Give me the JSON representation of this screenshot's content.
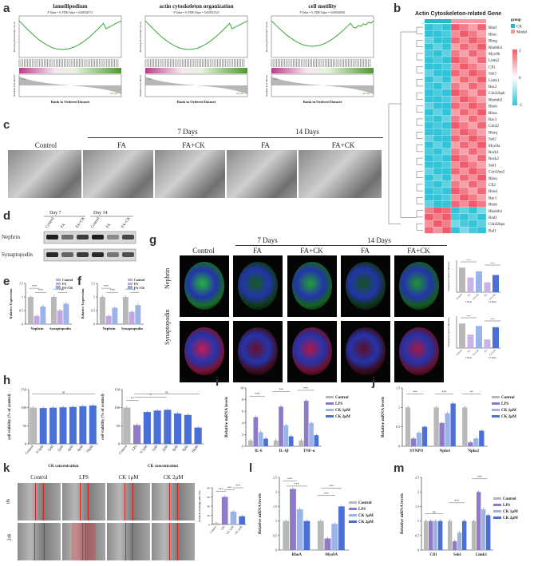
{
  "panels": {
    "a": {
      "label": "a",
      "gsea": [
        {
          "title": "lamellipodium",
          "stats": "P Value = 0; FDR Value = 0.000520711",
          "xlabel": "Rank in Ordered Dataset",
          "ylabel_top": "Running Enrichment Score",
          "ylabel_bottom": "Ranked List Metric"
        },
        {
          "title": "actin cytoskeleton organization",
          "stats": "P Value = 0; FDR Value = 0.000521523",
          "xlabel": "Rank in Ordered Dataset",
          "ylabel_top": "Running Enrichment Score",
          "ylabel_bottom": "Ranked List Metric"
        },
        {
          "title": "cell motility",
          "stats": "P Value = 0; FDR Value = 0.000520801",
          "xlabel": "Rank in Ordered Dataset",
          "ylabel_top": "Running Enrichment Score",
          "ylabel_bottom": "Ranked List Metric"
        }
      ],
      "group_left": "CK",
      "group_right": "Model"
    },
    "b": {
      "label": "b",
      "title": "Actin Cytoskeleton-related Gene",
      "legend_title": "group",
      "legend_items": [
        {
          "name": "CK",
          "color": "#2ab5c8"
        },
        {
          "name": "Model",
          "color": "#f39aa0"
        }
      ],
      "scale": [
        "1",
        "0",
        "-1"
      ],
      "genes": [
        "Rhof",
        "Rhoc",
        "Rhog",
        "Rhobtb3",
        "Myo9b",
        "Limk2",
        "Cfl1",
        "Ssh3",
        "Limk1",
        "Rac2",
        "Cdc42bpb",
        "Rhobtb2",
        "Rhoh",
        "Rhoa",
        "Rac3",
        "Cdc42",
        "Rhoq",
        "Ssh2",
        "Myo9a",
        "Rock1",
        "Rock2",
        "Ssh1",
        "Cdc42ep2",
        "Rhou",
        "Cfl2",
        "Rhod",
        "Rac1",
        "Rhob",
        "Rhobtb1",
        "Rnd1",
        "Cdc42bpa",
        "Raf1"
      ]
    },
    "c": {
      "label": "c",
      "headers": {
        "control": "Control",
        "day7": "7 Days",
        "day14": "14 Days",
        "fa": "FA",
        "fack": "FA+CK"
      }
    },
    "d": {
      "label": "d",
      "day7": "Day 7",
      "day14": "Day 14",
      "lanes": [
        "Control",
        "FA",
        "FA+CK",
        "Control",
        "FA",
        "FA+CK"
      ],
      "rows": [
        "Nephrin",
        "Synaptopodin"
      ]
    },
    "e": {
      "label": "e",
      "ylabel": "Relative Expression",
      "legend": [
        "Control",
        "FA",
        "FA+CK"
      ],
      "categories": [
        "Nephrin",
        "Synaptopodin"
      ]
    },
    "f": {
      "label": "f",
      "ylabel": "Relative Expression",
      "legend": [
        "Control",
        "FA",
        "FA+CK"
      ],
      "categories": [
        "Nephrin",
        "Synaptopodin"
      ]
    },
    "g": {
      "label": "g",
      "headers": {
        "control": "Control",
        "day7": "7 Days",
        "day14": "14 Days",
        "fa": "FA",
        "fack": "FA+CK"
      },
      "rows": [
        "Nephrin",
        "Synaptopodin"
      ],
      "side_ylabel": "Integrated Optical Density",
      "side_x": [
        "Control",
        "FA",
        "FA+CK",
        "FA",
        "FA+CK"
      ],
      "side_groups": [
        "7 Days",
        "14 Days"
      ]
    },
    "h": {
      "label": "h",
      "left": {
        "ylabel": "cell viability (% of control)",
        "xlabel": "CK concentration",
        "categories": [
          "Control",
          "0.5μM",
          "1μM",
          "2μM",
          "4μM",
          "8μM",
          "16μM"
        ],
        "ns": "ns"
      },
      "right": {
        "ylabel": "cell viability (% of control)",
        "xlabel": "CK concentration",
        "categories": [
          "Control",
          "LPS",
          "0.5μM",
          "1μM",
          "2μM",
          "4μM",
          "8μM",
          "16μM"
        ]
      }
    },
    "i": {
      "label": "i",
      "ylabel": "Relative mRNA levels",
      "categories": [
        "IL-6",
        "IL-1β",
        "TNF-α"
      ],
      "legend": [
        "Control",
        "LPS",
        "CK 1μM",
        "CK 2μM"
      ]
    },
    "j": {
      "label": "j",
      "ylabel": "Relative mRNA levels",
      "categories": [
        "SYNPO",
        "Nphs1",
        "Nphs2"
      ],
      "legend": [
        "Control",
        "LPS",
        "CK 1μM",
        "CK 2μM"
      ]
    },
    "k": {
      "label": "k",
      "cols": [
        "Control",
        "LPS",
        "CK 1μM",
        "CK 2μM"
      ],
      "rows": [
        "0h",
        "24h"
      ],
      "side_ylabel": "Scratch coverage rate (%)",
      "side_x": [
        "Control",
        "LPS",
        "CK 1μM",
        "CK 2μM"
      ]
    },
    "l": {
      "label": "l",
      "ylabel": "Relative mRNA levels",
      "categories": [
        "RhoA",
        "Myo9A"
      ],
      "legend": [
        "Control",
        "LPS",
        "CK 1μM",
        "CK 2μM"
      ]
    },
    "m": {
      "label": "m",
      "ylabel": "Relative mRNA levels",
      "categories": [
        "Cfl1",
        "Ssh1",
        "Limk1"
      ],
      "legend": [
        "Control",
        "LPS",
        "CK 1μM",
        "CK 2μM"
      ]
    }
  },
  "colors": {
    "control": "#b8b8b8",
    "lps": "#8f79c9",
    "ck1": "#9ab3e8",
    "ck2": "#4a6fd6",
    "fa": "#c9b3e6",
    "green": "#3aa83a",
    "heat_pos": "#f05a6a",
    "heat_neg": "#31c4d9"
  },
  "chart_data": [
    {
      "type": "bar",
      "id": "e",
      "categories": [
        "Nephrin",
        "Synaptopodin"
      ],
      "series": [
        {
          "name": "Control",
          "values": [
            1.0,
            1.0
          ]
        },
        {
          "name": "FA",
          "values": [
            0.3,
            0.5
          ]
        },
        {
          "name": "FA+CK",
          "values": [
            0.65,
            0.75
          ]
        }
      ],
      "ylim": [
        0,
        1.5
      ]
    },
    {
      "type": "bar",
      "id": "f",
      "categories": [
        "Nephrin",
        "Synaptopodin"
      ],
      "series": [
        {
          "name": "Control",
          "values": [
            1.0,
            1.0
          ]
        },
        {
          "name": "FA",
          "values": [
            0.3,
            0.45
          ]
        },
        {
          "name": "FA+CK",
          "values": [
            0.6,
            0.7
          ]
        }
      ],
      "ylim": [
        0,
        1.5
      ]
    },
    {
      "type": "bar",
      "id": "h-left",
      "categories": [
        "Control",
        "0.5μM",
        "1μM",
        "2μM",
        "4μM",
        "8μM",
        "16μM"
      ],
      "values": [
        100,
        99,
        100,
        101,
        102,
        104,
        106
      ],
      "ylim": [
        0,
        150
      ]
    },
    {
      "type": "bar",
      "id": "h-right",
      "categories": [
        "Control",
        "LPS",
        "0.5μM",
        "1μM",
        "2μM",
        "4μM",
        "8μM",
        "16μM"
      ],
      "values": [
        100,
        52,
        88,
        92,
        94,
        84,
        80,
        45
      ],
      "ylim": [
        0,
        150
      ]
    },
    {
      "type": "bar",
      "id": "i",
      "categories": [
        "IL-6",
        "IL-1β",
        "TNF-α"
      ],
      "series": [
        {
          "name": "Control",
          "values": [
            1,
            1,
            1
          ]
        },
        {
          "name": "LPS",
          "values": [
            5.0,
            6.8,
            7.8
          ]
        },
        {
          "name": "CK 1μM",
          "values": [
            2.4,
            3.6,
            4.0
          ]
        },
        {
          "name": "CK 2μM",
          "values": [
            1.3,
            1.7,
            1.9
          ]
        }
      ],
      "ylim": [
        0,
        10
      ]
    },
    {
      "type": "bar",
      "id": "j",
      "categories": [
        "SYNPO",
        "Nphs1",
        "Nphs2"
      ],
      "series": [
        {
          "name": "Control",
          "values": [
            1.0,
            1.0,
            1.0
          ]
        },
        {
          "name": "LPS",
          "values": [
            0.2,
            0.6,
            0.1
          ]
        },
        {
          "name": "CK 1μM",
          "values": [
            0.35,
            0.85,
            0.2
          ]
        },
        {
          "name": "CK 2μM",
          "values": [
            0.5,
            1.1,
            0.4
          ]
        }
      ],
      "ylim": [
        0,
        1.5
      ]
    },
    {
      "type": "bar",
      "id": "k-side",
      "categories": [
        "Control",
        "LPS",
        "CK 1μM",
        "CK 2μM"
      ],
      "values": [
        3,
        60,
        28,
        18
      ],
      "ylim": [
        0,
        80
      ]
    },
    {
      "type": "bar",
      "id": "l",
      "categories": [
        "RhoA",
        "Myo9A"
      ],
      "series": [
        {
          "name": "Control",
          "values": [
            1.0,
            1.0
          ]
        },
        {
          "name": "LPS",
          "values": [
            2.1,
            0.4
          ]
        },
        {
          "name": "CK 1μM",
          "values": [
            1.4,
            0.9
          ]
        },
        {
          "name": "CK 2μM",
          "values": [
            1.0,
            1.5
          ]
        }
      ],
      "ylim": [
        0,
        2.5
      ]
    },
    {
      "type": "bar",
      "id": "m",
      "categories": [
        "Cfl1",
        "Ssh1",
        "Limk1"
      ],
      "series": [
        {
          "name": "Control",
          "values": [
            1.0,
            1.0,
            1.0
          ]
        },
        {
          "name": "LPS",
          "values": [
            1.0,
            0.3,
            2.0
          ]
        },
        {
          "name": "CK 1μM",
          "values": [
            1.0,
            0.6,
            1.4
          ]
        },
        {
          "name": "CK 2μM",
          "values": [
            1.0,
            1.0,
            1.2
          ]
        }
      ],
      "ylim": [
        0,
        2.5
      ]
    }
  ]
}
